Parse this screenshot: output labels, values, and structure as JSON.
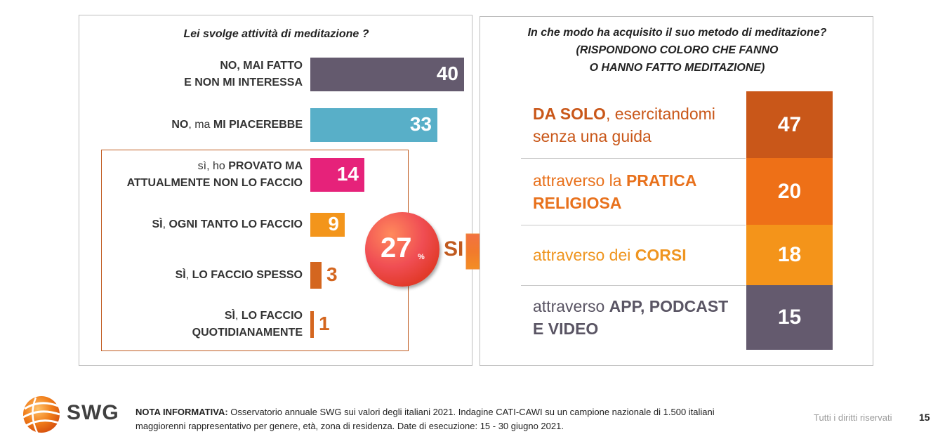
{
  "colors": {
    "purple": "#645a6e",
    "teal": "#58afc8",
    "magenta": "#e6227a",
    "orange_light": "#f3951b",
    "orange_rust": "#d4661f",
    "rust": "#c95719",
    "orange": "#ee7017",
    "gold": "#f4941a",
    "text_rust": "#c05a1f"
  },
  "left_chart": {
    "title": "Lei svolge attività di meditazione ?",
    "summary": {
      "value": "27",
      "unit": "%",
      "label": "SI"
    }
  },
  "right_chart": {
    "title_lines": [
      "In che modo ha acquisito il suo metodo di meditazione?",
      "(RISPONDONO COLORO CHE FANNO",
      "O HANNO FATTO MEDITAZIONE)"
    ]
  },
  "chart_data": [
    {
      "type": "bar",
      "orientation": "horizontal",
      "title": "Lei svolge attività di meditazione ?",
      "categories": [
        "NO, MAI FATTO E NON MI INTERESSA",
        "NO, ma MI PIACEREBBE",
        "sì, ho PROVATO MA ATTUALMENTE NON LO FACCIO",
        "SÌ, OGNI TANTO LO FACCIO",
        "SÌ, LO FACCIO SPESSO",
        "SÌ, LO FACCIO QUOTIDIANAMENTE"
      ],
      "values": [
        40,
        33,
        14,
        9,
        3,
        1
      ],
      "xlim": [
        0,
        40
      ],
      "grid": false,
      "rows": [
        {
          "lines": [
            [
              {
                "t": "NO, MAI FATTO",
                "b": true
              }
            ],
            [
              {
                "t": "E NON MI INTERESSA",
                "b": true
              }
            ]
          ],
          "value": 40,
          "color": "#645a6e",
          "value_inside": true
        },
        {
          "lines": [
            [
              {
                "t": "NO",
                "b": true
              },
              {
                "t": ", ma ",
                "b": false
              },
              {
                "t": "MI PIACEREBBE",
                "b": true
              }
            ]
          ],
          "value": 33,
          "color": "#58afc8",
          "value_inside": true
        },
        {
          "lines": [
            [
              {
                "t": "sì, ho ",
                "b": false
              },
              {
                "t": "PROVATO MA",
                "b": true
              }
            ],
            [
              {
                "t": "ATTUALMENTE NON LO FACCIO",
                "b": true
              }
            ]
          ],
          "value": 14,
          "color": "#e6227a",
          "value_inside": true
        },
        {
          "lines": [
            [
              {
                "t": "SÌ",
                "b": true
              },
              {
                "t": ", ",
                "b": false
              },
              {
                "t": "OGNI TANTO LO FACCIO",
                "b": true
              }
            ]
          ],
          "value": 9,
          "color": "#f3951b",
          "value_inside": true
        },
        {
          "lines": [
            [
              {
                "t": "SÌ",
                "b": true
              },
              {
                "t": ", ",
                "b": false
              },
              {
                "t": "LO FACCIO SPESSO",
                "b": true
              }
            ]
          ],
          "value": 3,
          "color": "#d4661f",
          "value_inside": false
        },
        {
          "lines": [
            [
              {
                "t": "SÌ",
                "b": true
              },
              {
                "t": ", ",
                "b": false
              },
              {
                "t": "LO FACCIO",
                "b": true
              }
            ],
            [
              {
                "t": "QUOTIDIANAMENTE",
                "b": true
              }
            ]
          ],
          "value": 1,
          "color": "#d4661f",
          "value_inside": false
        }
      ]
    },
    {
      "type": "table",
      "title": "In che modo ha acquisito il suo metodo di meditazione? (RISPONDONO COLORO CHE FANNO O HANNO FATTO MEDITAZIONE)",
      "categories": [
        "DA SOLO, esercitandomi senza una guida",
        "attraverso la PRATICA RELIGIOSA",
        "attraverso dei CORSI",
        "attraverso APP, PODCAST E VIDEO"
      ],
      "values": [
        47,
        20,
        18,
        15
      ],
      "rows": [
        {
          "parts": [
            {
              "t": "DA SOLO",
              "b": true
            },
            {
              "t": ", esercitandomi senza una guida",
              "b": false
            }
          ],
          "value": 47,
          "color": "#c95719",
          "text_color": "#c95719"
        },
        {
          "parts": [
            {
              "t": "attraverso la ",
              "b": false
            },
            {
              "t": "PRATICA RELIGIOSA",
              "b": true
            }
          ],
          "value": 20,
          "color": "#ee7017",
          "text_color": "#e8711c"
        },
        {
          "parts": [
            {
              "t": "attraverso dei ",
              "b": false
            },
            {
              "t": "CORSI",
              "b": true
            }
          ],
          "value": 18,
          "color": "#f4941a",
          "text_color": "#ef9520"
        },
        {
          "parts": [
            {
              "t": "attraverso ",
              "b": false
            },
            {
              "t": "APP, PODCAST E VIDEO",
              "b": true
            }
          ],
          "value": 15,
          "color": "#645a6e",
          "text_color": "#5a5564"
        }
      ]
    }
  ],
  "footer": {
    "logo_text": "SWG",
    "note_label": "NOTA INFORMATIVA:",
    "note_text": " Osservatorio annuale SWG sui valori degli italiani 2021. Indagine CATI-CAWI su un campione nazionale di 1.500 italiani maggiorenni rappresentativo per genere, età, zona di residenza. Date di esecuzione: 15 - 30 giugno 2021.",
    "rights": "Tutti i diritti riservati",
    "page_number": "15"
  }
}
